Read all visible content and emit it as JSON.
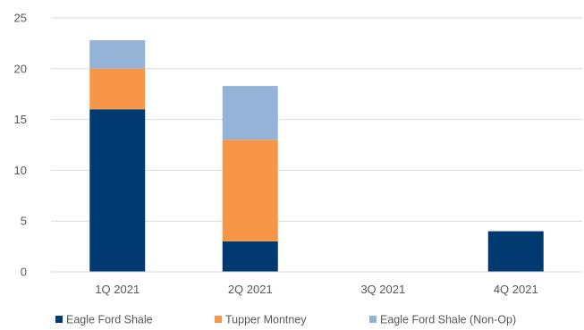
{
  "chart_data": {
    "type": "bar",
    "stacked": true,
    "categories": [
      "1Q 2021",
      "2Q 2021",
      "3Q 2021",
      "4Q 2021"
    ],
    "series": [
      {
        "name": "Eagle Ford Shale",
        "color": "#003a70",
        "values": [
          16,
          3,
          0,
          4
        ]
      },
      {
        "name": "Tupper Montney",
        "color": "#f79646",
        "values": [
          4,
          10,
          0,
          0
        ]
      },
      {
        "name": "Eagle Ford Shale (Non-Op)",
        "color": "#95b3d7",
        "values": [
          2.8,
          5.3,
          0,
          0
        ]
      }
    ],
    "title": "",
    "xlabel": "",
    "ylabel": "",
    "ylim": [
      0,
      25
    ],
    "yticks": [
      0,
      5,
      10,
      15,
      20,
      25
    ],
    "grid": true,
    "legend_position": "bottom"
  }
}
